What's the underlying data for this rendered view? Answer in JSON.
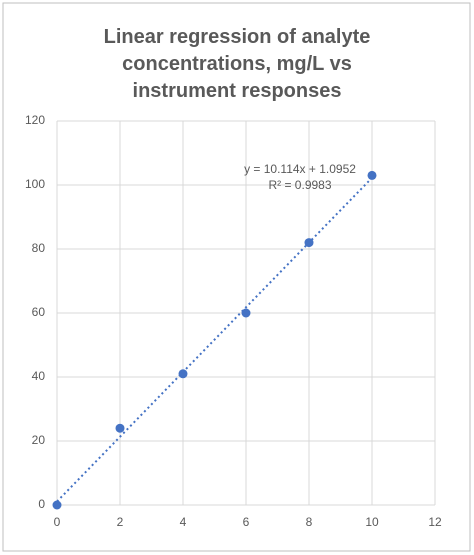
{
  "chart_data": {
    "type": "scatter",
    "title": "Linear regression of analyte concentrations, mg/L vs instrument responses",
    "x": [
      0,
      2,
      4,
      6,
      8,
      10
    ],
    "values": [
      0,
      24,
      41,
      60,
      82,
      103
    ],
    "color": "#4472c4",
    "xlim": [
      0,
      12
    ],
    "xticks": [
      0,
      2,
      4,
      6,
      8,
      10,
      12
    ],
    "ylim": [
      0,
      120
    ],
    "yticks": [
      0,
      20,
      40,
      60,
      80,
      100,
      120
    ],
    "grid": true,
    "trendline": {
      "slope": 10.114,
      "intercept": 1.0952,
      "style": "dotted"
    },
    "annotations": [
      "y = 10.114x + 1.0952",
      "R² = 0.9983"
    ]
  }
}
